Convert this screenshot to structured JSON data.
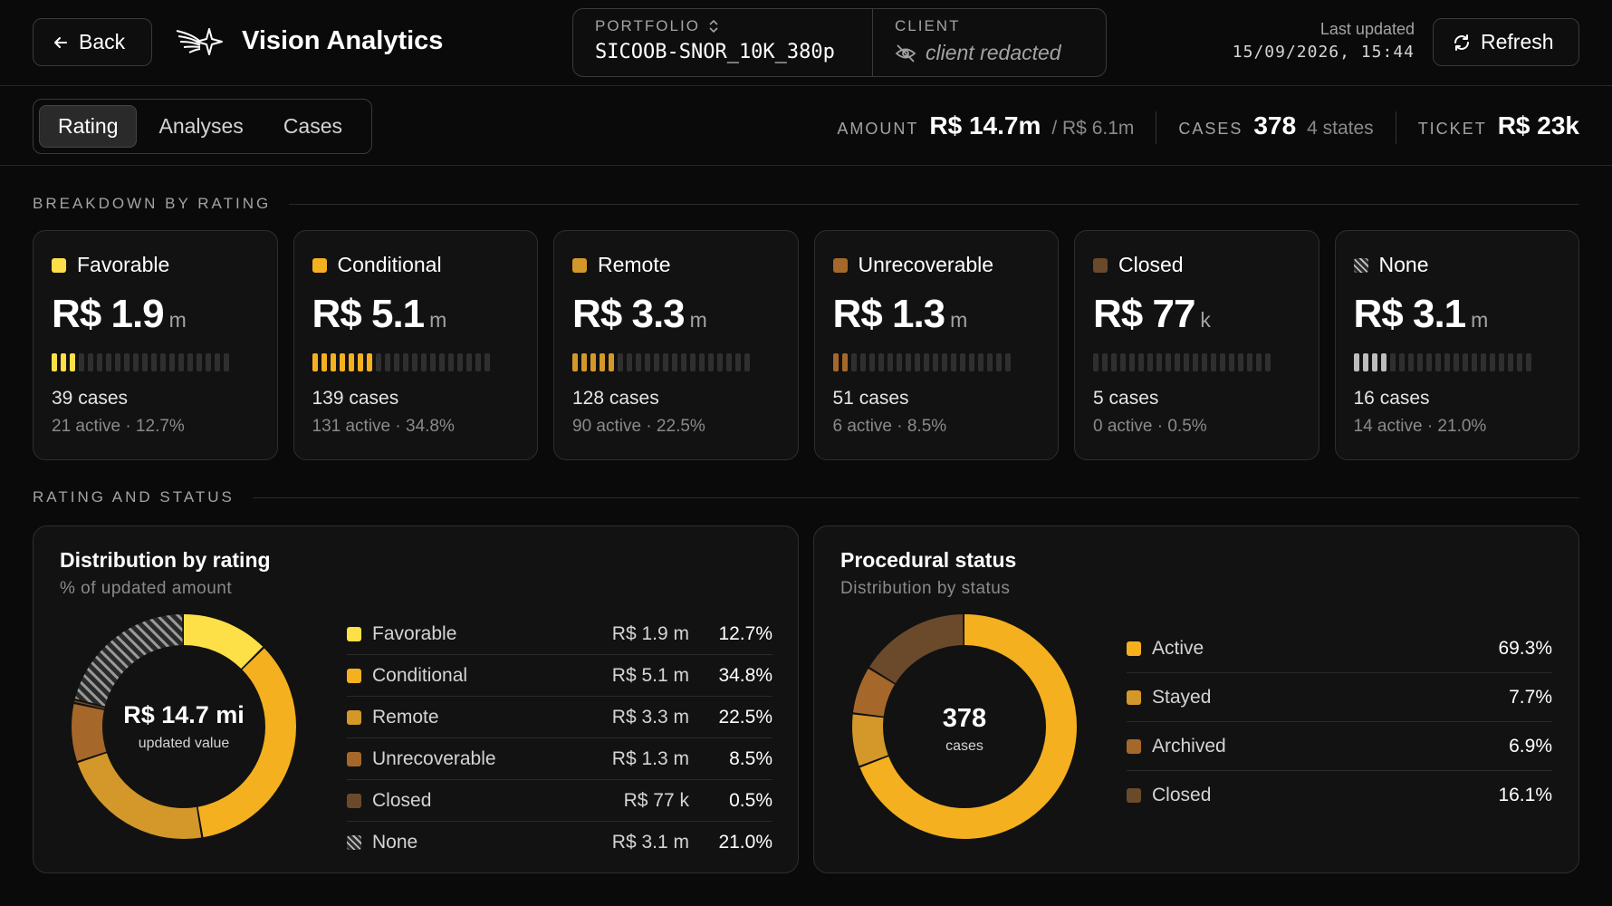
{
  "header": {
    "back_label": "Back",
    "brand": "Vision Analytics",
    "portfolio_label": "PORTFOLIO",
    "portfolio_value": "SICOOB-SNOR_10K_380p",
    "client_label": "CLIENT",
    "client_value": "client redacted",
    "updated_label": "Last updated",
    "updated_value": "15/09/2026, 15:44",
    "refresh_label": "Refresh"
  },
  "tabs": [
    "Rating",
    "Analyses",
    "Cases"
  ],
  "active_tab": "Rating",
  "kpis": {
    "amount_label": "AMOUNT",
    "amount_value": "R$ 14.7m",
    "amount_sub": "/ R$ 6.1m",
    "cases_label": "CASES",
    "cases_value": "378",
    "cases_sub": "4 states",
    "ticket_label": "TICKET",
    "ticket_value": "R$ 23k"
  },
  "sections": {
    "breakdown": "BREAKDOWN BY RATING",
    "rating_status": "RATING AND STATUS"
  },
  "ratings": [
    {
      "name": "Favorable",
      "amount": "R$ 1.9",
      "unit": "m",
      "cases": "39 cases",
      "meta": "21 active · 12.7%",
      "color": "#fde047",
      "filled": 3
    },
    {
      "name": "Conditional",
      "amount": "R$ 5.1",
      "unit": "m",
      "cases": "139 cases",
      "meta": "131 active · 34.8%",
      "color": "#f5b01f",
      "filled": 7
    },
    {
      "name": "Remote",
      "amount": "R$ 3.3",
      "unit": "m",
      "cases": "128 cases",
      "meta": "90 active · 22.5%",
      "color": "#d4982a",
      "filled": 5
    },
    {
      "name": "Unrecoverable",
      "amount": "R$ 1.3",
      "unit": "m",
      "cases": "51 cases",
      "meta": "6 active · 8.5%",
      "color": "#a5682a",
      "filled": 2
    },
    {
      "name": "Closed",
      "amount": "R$ 77",
      "unit": "k",
      "cases": "5 cases",
      "meta": "0 active · 0.5%",
      "color": "#6b4a2c",
      "filled": 0
    },
    {
      "name": "None",
      "amount": "R$ 3.1",
      "unit": "m",
      "cases": "16 cases",
      "meta": "14 active · 21.0%",
      "color": "#bdbdbd",
      "filled": 4
    }
  ],
  "distribution": {
    "title": "Distribution by rating",
    "subtitle": "% of updated amount",
    "center_value": "R$ 14.7 mi",
    "center_label": "updated value",
    "rows": [
      {
        "name": "Favorable",
        "amount": "R$ 1.9 m",
        "pct": "12.7%",
        "value": 12.7,
        "color": "#fde047"
      },
      {
        "name": "Conditional",
        "amount": "R$ 5.1 m",
        "pct": "34.8%",
        "value": 34.8,
        "color": "#f5b01f"
      },
      {
        "name": "Remote",
        "amount": "R$ 3.3 m",
        "pct": "22.5%",
        "value": 22.5,
        "color": "#d4982a"
      },
      {
        "name": "Unrecoverable",
        "amount": "R$ 1.3 m",
        "pct": "8.5%",
        "value": 8.5,
        "color": "#a5682a"
      },
      {
        "name": "Closed",
        "amount": "R$ 77 k",
        "pct": "0.5%",
        "value": 0.5,
        "color": "#6b4a2c"
      },
      {
        "name": "None",
        "amount": "R$ 3.1 m",
        "pct": "21.0%",
        "value": 21.0,
        "color": "hatch"
      }
    ]
  },
  "procedural": {
    "title": "Procedural status",
    "subtitle": "Distribution by status",
    "center_value": "378",
    "center_label": "cases",
    "rows": [
      {
        "name": "Active",
        "pct": "69.3%",
        "value": 69.3,
        "color": "#f5b01f"
      },
      {
        "name": "Stayed",
        "pct": "7.7%",
        "value": 7.7,
        "color": "#d4982a"
      },
      {
        "name": "Archived",
        "pct": "6.9%",
        "value": 6.9,
        "color": "#a5682a"
      },
      {
        "name": "Closed",
        "pct": "16.1%",
        "value": 16.1,
        "color": "#6b4a2c"
      }
    ]
  },
  "icons": {
    "back": "arrow-left-icon",
    "logo": "sparkle-wings-logo",
    "sort": "chevron-up-down-icon",
    "hidden": "eye-off-icon",
    "refresh": "refresh-icon"
  }
}
